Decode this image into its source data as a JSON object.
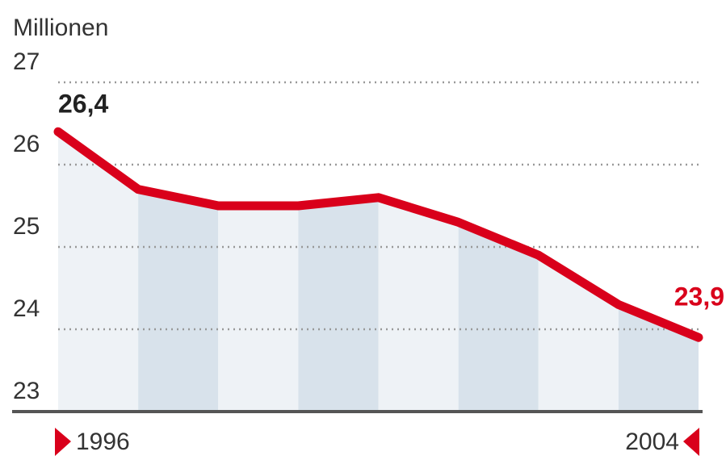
{
  "chart_data": {
    "type": "line",
    "y_label": "Millionen",
    "categories": [
      "1996",
      null,
      null,
      null,
      null,
      null,
      null,
      null,
      "2004"
    ],
    "series": [
      {
        "color": "#d9001b",
        "values": [
          26.4,
          25.7,
          25.5,
          25.5,
          25.6,
          25.3,
          24.9,
          24.3,
          23.9
        ],
        "value_labels": [
          "26,4",
          null,
          null,
          null,
          null,
          null,
          null,
          null,
          "23,9"
        ]
      }
    ],
    "ylim": [
      23,
      27
    ],
    "yticks": [
      23,
      24,
      25,
      26,
      27
    ],
    "grid": true,
    "band_colors": [
      "#eef2f6",
      "#d8e2eb"
    ]
  }
}
